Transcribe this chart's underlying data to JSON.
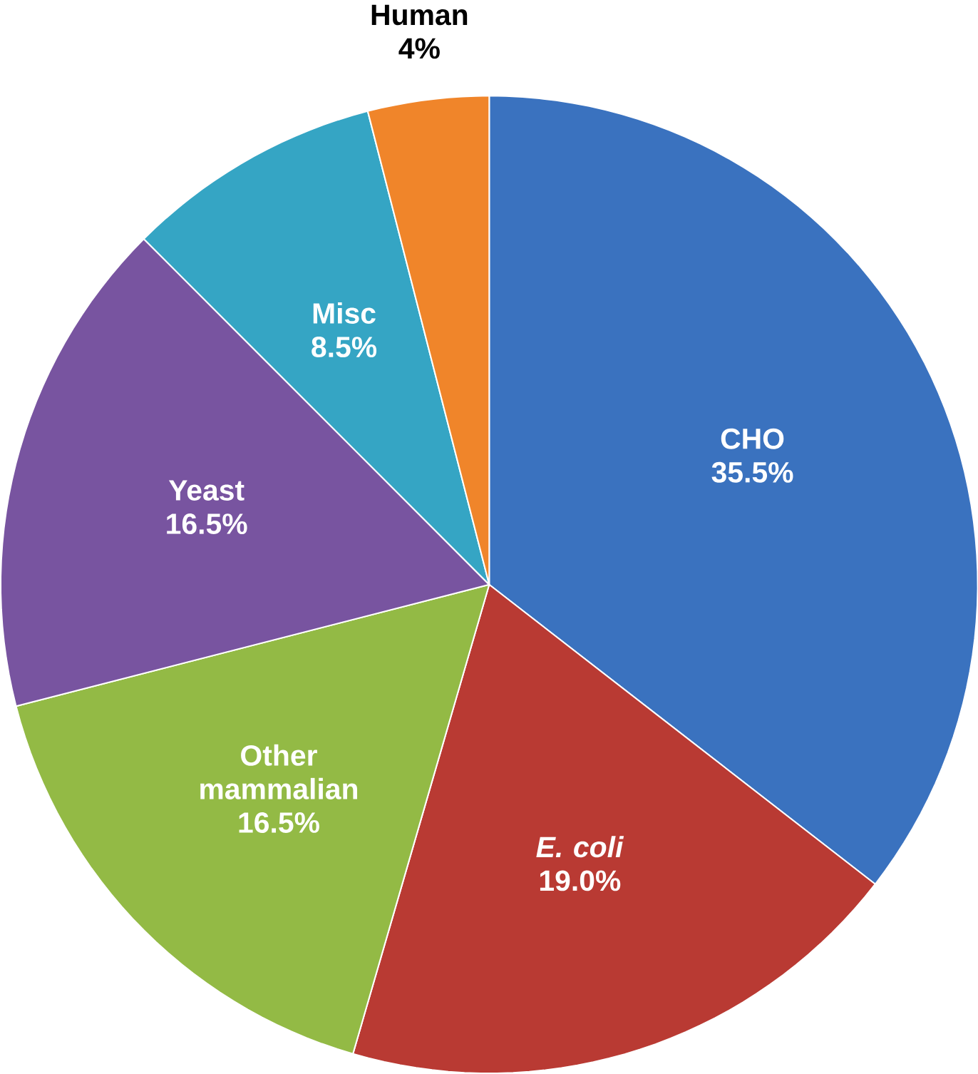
{
  "chart_data": {
    "type": "pie",
    "categories": [
      "CHO",
      "*E. coli*",
      "Other mammalian",
      "Yeast",
      "Misc",
      "Human"
    ],
    "values": [
      35.5,
      19.0,
      16.5,
      16.5,
      8.5,
      4
    ],
    "value_labels": [
      "35.5%",
      "19.0%",
      "16.5%",
      "16.5%",
      "8.5%",
      "4%"
    ],
    "colors": [
      "#3a72bf",
      "#b93a33",
      "#93ba45",
      "#7854a0",
      "#35a5c4",
      "#f0852a"
    ]
  }
}
